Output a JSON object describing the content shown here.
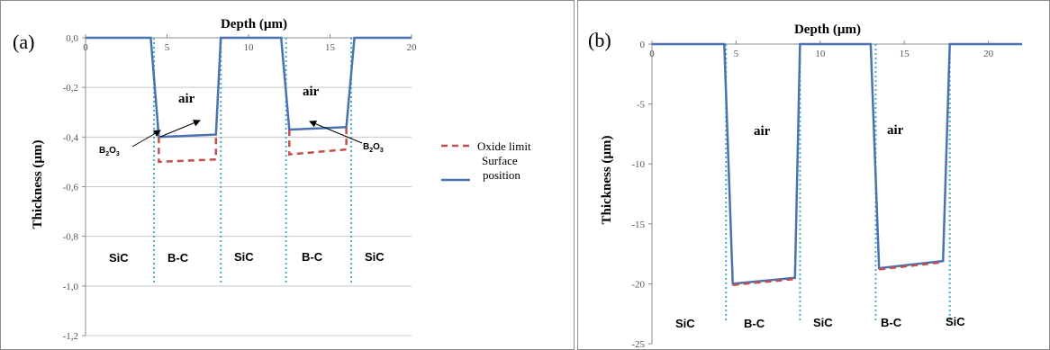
{
  "colors": {
    "surface": "#4a72b0",
    "oxide": "#c0504d",
    "boundary": "#4bacc6",
    "grid": "#c8c8c8",
    "axis": "#8c8c8c"
  },
  "chart_data": [
    {
      "type": "line",
      "panel_label": "(a)",
      "title": "Depth (µm)",
      "xlabel": "Depth (µm)",
      "ylabel": "Thickness (µm)",
      "xlim": [
        0,
        20
      ],
      "ylim": [
        -1.2,
        0
      ],
      "x_ticks": [
        0,
        5,
        10,
        15,
        20
      ],
      "y_ticks": [
        0,
        -0.2,
        -0.4,
        -0.6,
        -0.8,
        -1.0,
        -1.2
      ],
      "x_tick_labels": [
        "0",
        "5",
        "10",
        "15",
        "20"
      ],
      "y_tick_labels": [
        "0,0",
        "-0,2",
        "-0,4",
        "-0,6",
        "-0,8",
        "-1,0",
        "-1,2"
      ],
      "x_axis_position": "top",
      "grid": "horizontal",
      "boundaries": [
        4.2,
        8.3,
        12.3,
        16.3
      ],
      "series": [
        {
          "name": "Surface position",
          "style": "solid",
          "x": [
            0,
            4.0,
            4.5,
            8.0,
            8.3,
            12.0,
            12.5,
            16.0,
            16.5,
            20
          ],
          "y": [
            0,
            0,
            -0.4,
            -0.39,
            0,
            0,
            -0.37,
            -0.36,
            0,
            0
          ]
        },
        {
          "name": "Oxide limit",
          "style": "dashed",
          "x": [
            4.5,
            4.5,
            8.0,
            8.0
          ],
          "y": [
            -0.4,
            -0.5,
            -0.49,
            -0.39
          ],
          "x2": [
            12.5,
            12.5,
            16.0,
            16.0
          ],
          "y2": [
            -0.37,
            -0.47,
            -0.45,
            -0.36
          ]
        }
      ],
      "regions": [
        "SiC",
        "B-C",
        "SiC",
        "B-C",
        "SiC"
      ],
      "air_labels": [
        "air",
        "air"
      ],
      "annotations": {
        "b2o3_main": "B",
        "b2o3_sub_2": "2",
        "b2o3_o": "O",
        "b2o3_sub_3": "3"
      },
      "legend": {
        "oxide": "Oxide limit",
        "surface_line1": "Surface",
        "surface_line2": "position",
        "placement": "right"
      }
    },
    {
      "type": "line",
      "panel_label": "(b)",
      "title": "Depth (µm)",
      "xlabel": "Depth (µm)",
      "ylabel": "Thickness (µm)",
      "xlim": [
        0,
        22
      ],
      "ylim": [
        -25,
        0
      ],
      "x_ticks": [
        0,
        5,
        10,
        15,
        20
      ],
      "y_ticks": [
        0,
        -5,
        -10,
        -15,
        -20,
        -25
      ],
      "x_tick_labels": [
        "0",
        "5",
        "10",
        "15",
        "20"
      ],
      "y_tick_labels": [
        "0",
        "-5",
        "-10",
        "-15",
        "-20",
        "-25"
      ],
      "x_axis_position": "top",
      "grid": "none",
      "boundaries": [
        4.4,
        8.8,
        13.3,
        17.7
      ],
      "series": [
        {
          "name": "Surface position",
          "style": "solid",
          "x": [
            0,
            4.3,
            4.8,
            8.5,
            8.8,
            13.0,
            13.5,
            17.3,
            17.7,
            22
          ],
          "y": [
            0,
            0,
            -20.0,
            -19.5,
            0,
            0,
            -18.7,
            -18.1,
            0,
            0
          ]
        },
        {
          "name": "Oxide limit",
          "style": "dashed",
          "x": [
            4.8,
            8.5
          ],
          "y": [
            -20.1,
            -19.6
          ],
          "x2": [
            13.5,
            17.3
          ],
          "y2": [
            -18.8,
            -18.2
          ]
        }
      ],
      "regions": [
        "SiC",
        "B-C",
        "SiC",
        "B-C",
        "SiC"
      ],
      "air_labels": [
        "air",
        "air"
      ]
    }
  ]
}
